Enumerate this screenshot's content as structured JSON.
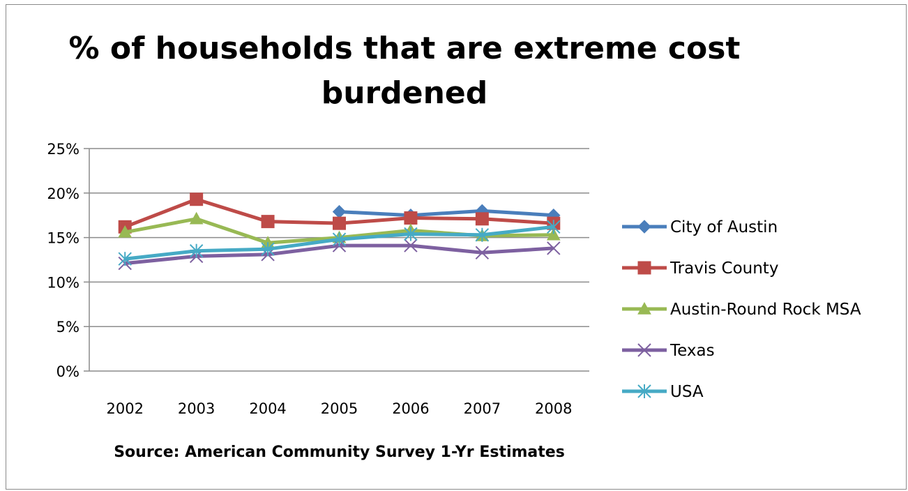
{
  "chart_data": {
    "type": "line",
    "title": "% of households that are extreme cost burdened",
    "xlabel": "Source: American Community Survey 1-Yr Estimates",
    "ylabel": "",
    "x": [
      "2002",
      "2003",
      "2004",
      "2005",
      "2006",
      "2007",
      "2008"
    ],
    "ylim": [
      0,
      25
    ],
    "yticks": [
      0,
      5,
      10,
      15,
      20,
      25
    ],
    "ytick_labels": [
      "0%",
      "5%",
      "10%",
      "15%",
      "20%",
      "25%"
    ],
    "grid": "horizontal",
    "legend_position": "right",
    "series": [
      {
        "name": "City of Austin",
        "color": "#4a7ebb",
        "marker": "diamond",
        "values": [
          null,
          null,
          null,
          17.9,
          17.5,
          18.0,
          17.5
        ]
      },
      {
        "name": "Travis County",
        "color": "#be4b48",
        "marker": "square",
        "values": [
          16.2,
          19.3,
          16.8,
          16.6,
          17.2,
          17.1,
          16.6
        ]
      },
      {
        "name": "Austin-Round Rock MSA",
        "color": "#98b954",
        "marker": "triangle",
        "values": [
          15.6,
          17.1,
          14.4,
          15.0,
          15.8,
          15.2,
          15.3
        ]
      },
      {
        "name": "Texas",
        "color": "#7d60a0",
        "marker": "x",
        "values": [
          12.1,
          12.9,
          13.1,
          14.1,
          14.1,
          13.3,
          13.8
        ]
      },
      {
        "name": "USA",
        "color": "#46aac5",
        "marker": "asterisk",
        "values": [
          12.6,
          13.5,
          13.7,
          14.8,
          15.4,
          15.3,
          16.2
        ]
      }
    ]
  }
}
